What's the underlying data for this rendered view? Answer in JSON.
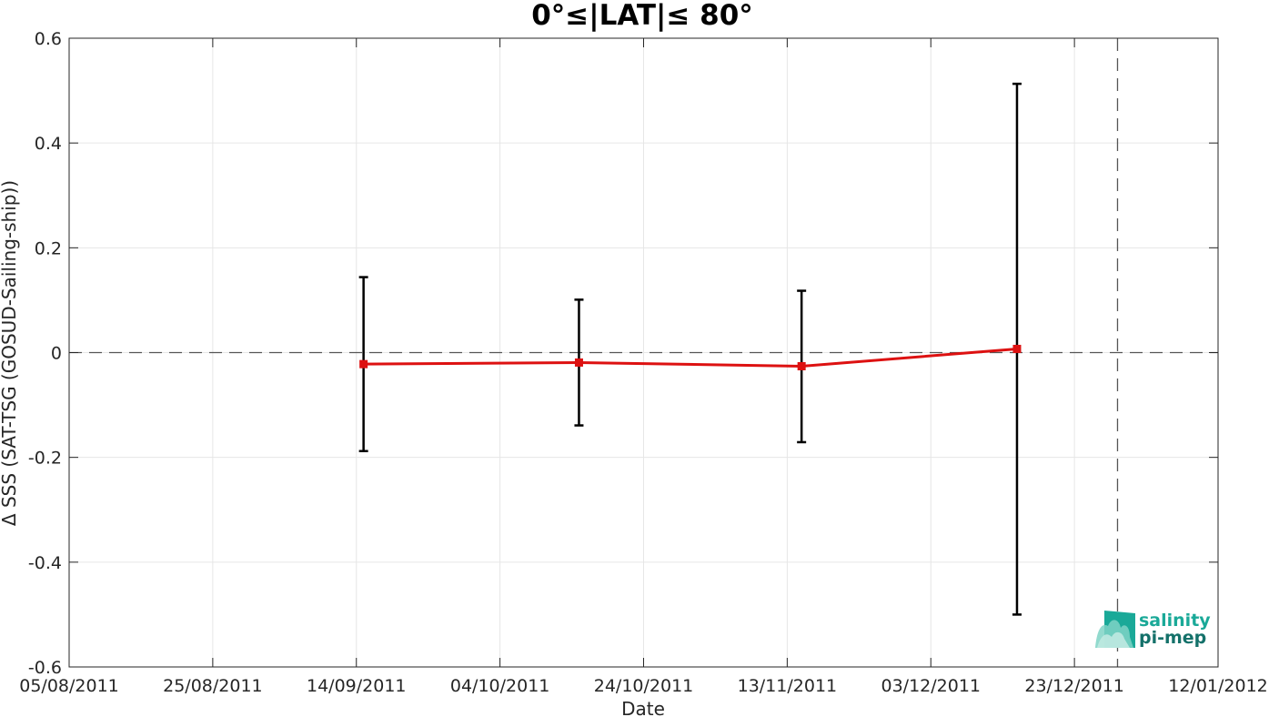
{
  "chart_data": {
    "type": "line",
    "title": "0°≤|LAT|≤ 80°",
    "xlabel": "Date",
    "ylabel": "Δ SSS (SAT-TSG (GOSUD-Sailing-ship))",
    "x_ticks": [
      "05/08/2011",
      "25/08/2011",
      "14/09/2011",
      "04/10/2011",
      "24/10/2011",
      "13/11/2011",
      "03/12/2011",
      "23/12/2011",
      "12/01/2012"
    ],
    "xlim": [
      "05/08/2011",
      "12/01/2012"
    ],
    "y_ticks": [
      "0.6",
      "0.4",
      "0.2",
      "0",
      "-0.2",
      "-0.4",
      "-0.6"
    ],
    "ylim": [
      -0.6,
      0.6
    ],
    "grid": true,
    "series": [
      {
        "x": [
          "15/09/2011",
          "15/10/2011",
          "15/11/2011",
          "15/12/2011"
        ],
        "values": [
          -0.022,
          -0.019,
          -0.026,
          0.007
        ],
        "error_low": [
          -0.188,
          -0.139,
          -0.171,
          -0.5
        ],
        "error_high": [
          0.144,
          0.101,
          0.118,
          0.513
        ],
        "color": "#dd1111",
        "errorbar_color": "#000000"
      }
    ],
    "reference_lines": [
      {
        "orientation": "horizontal",
        "y": 0,
        "style": "dashed"
      },
      {
        "orientation": "vertical",
        "x": "29/12/2011",
        "style": "dashed"
      }
    ]
  },
  "logo": {
    "line1": "salinity",
    "line2": "pi-mep",
    "color1": "#1aa998",
    "color2": "#14716a"
  }
}
